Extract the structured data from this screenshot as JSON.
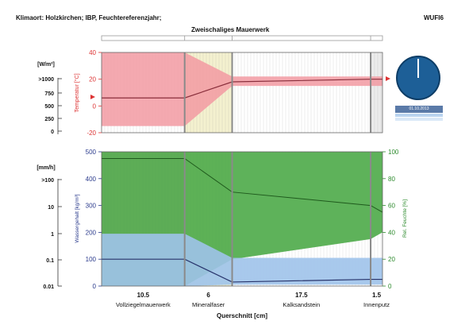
{
  "header": {
    "left": "Klimaort: Holzkirchen; IBP, Feuchtereferenzjahr;",
    "right": "WUFI6",
    "subtitle": "Zweischaliges Mauerwerk"
  },
  "clock": {
    "date": "01.10.2013"
  },
  "chart_data": [
    {
      "type": "area",
      "name": "temperature-panel",
      "ylabel": "Temperatur [°C]",
      "ylim": [
        -20,
        40
      ],
      "yticks": [
        -20,
        0,
        20,
        40
      ],
      "left_scale_label": "[W/m²]",
      "left_scale_ticks": [
        ">1000",
        "750",
        "500",
        "250",
        "0"
      ],
      "x": [
        0,
        10.5,
        16.5,
        34.0,
        35.5
      ],
      "temperature_max": [
        40,
        40,
        22,
        22,
        22
      ],
      "temperature_min": [
        -15,
        -15,
        15,
        15,
        15
      ],
      "temperature_current": [
        6,
        6,
        18,
        20,
        20
      ],
      "colors": {
        "band": "#f29aa2",
        "line": "#8a2f3c",
        "insulation": "#f4f1cf"
      }
    },
    {
      "type": "area",
      "name": "moisture-panel",
      "ylabel_left": "Wassergehalt [kg/m³]",
      "ylabel_right": "Rel. Feuchte [%]",
      "ylim_left": [
        0,
        500
      ],
      "yticks_left": [
        0,
        100,
        200,
        300,
        400,
        500
      ],
      "ylim_right": [
        0,
        100
      ],
      "yticks_right": [
        0,
        20,
        40,
        60,
        80,
        100
      ],
      "left_scale_label": "[mm/h]",
      "left_scale_ticks": [
        ">100",
        "10",
        "1",
        "0.1",
        "0.01"
      ],
      "x": [
        0,
        10.5,
        16.5,
        34.0,
        35.5
      ],
      "rh_max": [
        100,
        100,
        100,
        100,
        100
      ],
      "rh_min": [
        0,
        0,
        20,
        35,
        40
      ],
      "rh_current": [
        95,
        95,
        70,
        60,
        55
      ],
      "wc_max": [
        195,
        195,
        105,
        105,
        105
      ],
      "wc_min": [
        0,
        0,
        5,
        5,
        5
      ],
      "wc_current": [
        100,
        100,
        15,
        25,
        25
      ],
      "xlabel": "Querschnitt [cm]",
      "layers": [
        {
          "thickness": "10.5",
          "name": "Vollziegelmauerwerk",
          "x0": 0,
          "x1": 10.5
        },
        {
          "thickness": "6",
          "name": "Mineralfaser",
          "x0": 10.5,
          "x1": 16.5
        },
        {
          "thickness": "17.5",
          "name": "Kalksandstein",
          "x0": 16.5,
          "x1": 34.0
        },
        {
          "thickness": "1.5",
          "name": "Innenputz",
          "x0": 34.0,
          "x1": 35.5
        }
      ],
      "colors": {
        "rh_band": "#4caa48",
        "rh_line": "#1f5a1d",
        "wc_band": "#9fc3ea",
        "wc_line": "#27336b",
        "pink": "#f5c8cf"
      }
    }
  ]
}
